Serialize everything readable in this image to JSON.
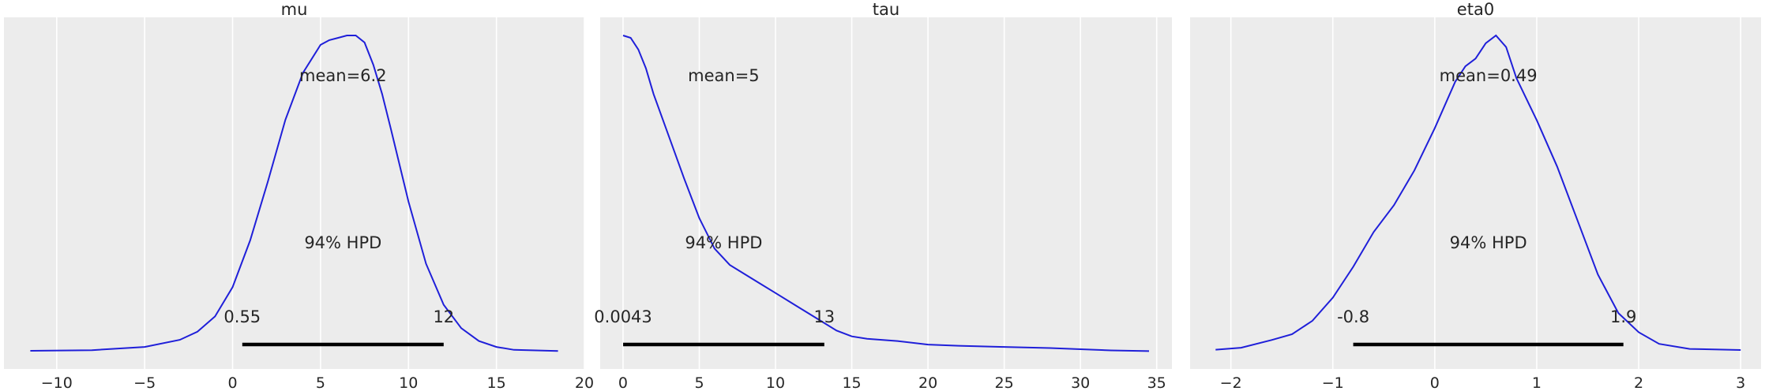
{
  "chart_data": [
    {
      "type": "line",
      "title": "mu",
      "mean_label": "mean=6.2",
      "hpd_label": "94% HPD",
      "hpd_interval": [
        0.55,
        12
      ],
      "hpd_low_label": "0.55",
      "hpd_high_label": "12",
      "xlim": [
        -13,
        20
      ],
      "xticks": [
        -10,
        -5,
        0,
        5,
        10,
        15,
        20
      ],
      "xtick_labels": [
        "−10",
        "−5",
        "0",
        "5",
        "10",
        "15",
        "20"
      ],
      "grid": true,
      "line_color": "#1f1fd9",
      "series": [
        {
          "x": [
            -11.5,
            -8,
            -5,
            -3,
            -2,
            -1,
            0,
            1,
            2,
            3,
            4,
            5,
            5.5,
            6,
            6.5,
            7,
            7.5,
            8,
            8.5,
            9,
            10,
            11,
            12,
            13,
            14,
            15,
            16,
            18.5
          ],
          "y": [
            0.0007,
            0.0012,
            0.004,
            0.01,
            0.017,
            0.03,
            0.055,
            0.095,
            0.145,
            0.198,
            0.238,
            0.262,
            0.266,
            0.268,
            0.27,
            0.27,
            0.264,
            0.245,
            0.22,
            0.19,
            0.128,
            0.075,
            0.04,
            0.02,
            0.009,
            0.004,
            0.0015,
            0.0005
          ]
        }
      ]
    },
    {
      "type": "line",
      "title": "tau",
      "mean_label": "mean=5",
      "hpd_label": "94% HPD",
      "hpd_interval": [
        0.0043,
        13.2
      ],
      "hpd_low_label": "0.0043",
      "hpd_high_label": "13",
      "xlim": [
        -1.5,
        36
      ],
      "xticks": [
        0,
        5,
        10,
        15,
        20,
        25,
        30,
        35
      ],
      "xtick_labels": [
        "0",
        "5",
        "10",
        "15",
        "20",
        "25",
        "30",
        "35"
      ],
      "grid": true,
      "line_color": "#1f1fd9",
      "series": [
        {
          "x": [
            0,
            0.5,
            1,
            1.5,
            2,
            3,
            4,
            5,
            6,
            7,
            8,
            9,
            10,
            11,
            12,
            13,
            14,
            15,
            16,
            18,
            20,
            22,
            25,
            28,
            30,
            32,
            34.5
          ],
          "y": [
            0.135,
            0.134,
            0.129,
            0.121,
            0.11,
            0.092,
            0.074,
            0.057,
            0.044,
            0.037,
            0.033,
            0.029,
            0.025,
            0.021,
            0.017,
            0.013,
            0.009,
            0.0065,
            0.0055,
            0.0045,
            0.003,
            0.0025,
            0.002,
            0.0015,
            0.001,
            0.0005,
            0.0002
          ]
        }
      ]
    },
    {
      "type": "line",
      "title": "eta0",
      "mean_label": "mean=0.49",
      "hpd_label": "94% HPD",
      "hpd_interval": [
        -0.8,
        1.85
      ],
      "hpd_low_label": "-0.8",
      "hpd_high_label": "1.9",
      "xlim": [
        -2.4,
        3.2
      ],
      "xticks": [
        -2,
        -1,
        0,
        1,
        2,
        3
      ],
      "xtick_labels": [
        "−2",
        "−1",
        "0",
        "1",
        "2",
        "3"
      ],
      "grid": true,
      "line_color": "#1f1fd9",
      "series": [
        {
          "x": [
            -2.15,
            -1.9,
            -1.6,
            -1.4,
            -1.2,
            -1,
            -0.8,
            -0.6,
            -0.4,
            -0.2,
            0,
            0.2,
            0.3,
            0.4,
            0.5,
            0.6,
            0.7,
            0.8,
            1,
            1.2,
            1.4,
            1.6,
            1.8,
            2,
            2.2,
            2.5,
            3
          ],
          "y": [
            0.005,
            0.01,
            0.03,
            0.045,
            0.08,
            0.14,
            0.22,
            0.31,
            0.38,
            0.47,
            0.58,
            0.7,
            0.74,
            0.76,
            0.8,
            0.82,
            0.79,
            0.71,
            0.6,
            0.48,
            0.34,
            0.2,
            0.1,
            0.05,
            0.02,
            0.007,
            0.004
          ]
        }
      ]
    }
  ]
}
